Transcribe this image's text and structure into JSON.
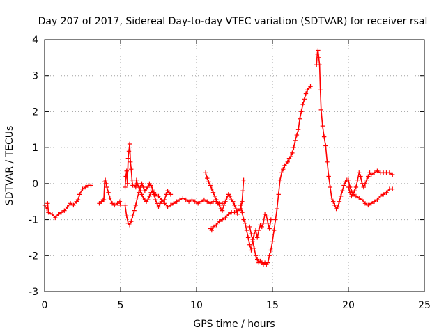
{
  "chart_data": {
    "type": "scatter",
    "title": "Day 207 of 2017, Sidereal Day-to-day VTEC variation (SDTVAR) for receiver rsal",
    "xlabel": "GPS time / hours",
    "ylabel": "SDTVAR / TECUs",
    "xlim": [
      0,
      25
    ],
    "ylim": [
      -3,
      4
    ],
    "xticks": [
      0,
      5,
      10,
      15,
      20,
      25
    ],
    "yticks": [
      -3,
      -2,
      -1,
      0,
      1,
      2,
      3,
      4
    ],
    "grid": true,
    "marker": "plus",
    "series": [
      {
        "name": "SDTVAR",
        "color": "#ff0000",
        "segments": [
          [
            [
              0.0,
              -0.6
            ],
            [
              0.15,
              -0.7
            ],
            [
              0.2,
              -0.55
            ],
            [
              0.25,
              -0.8
            ],
            [
              0.5,
              -0.85
            ],
            [
              0.7,
              -0.95
            ],
            [
              0.9,
              -0.85
            ],
            [
              1.1,
              -0.8
            ],
            [
              1.3,
              -0.75
            ],
            [
              1.5,
              -0.65
            ],
            [
              1.7,
              -0.55
            ],
            [
              1.9,
              -0.6
            ],
            [
              2.1,
              -0.5
            ],
            [
              2.2,
              -0.45
            ],
            [
              2.3,
              -0.3
            ],
            [
              2.5,
              -0.15
            ],
            [
              2.7,
              -0.1
            ],
            [
              2.9,
              -0.05
            ],
            [
              3.05,
              -0.05
            ]
          ],
          [
            [
              3.6,
              -0.55
            ],
            [
              3.75,
              -0.5
            ],
            [
              3.85,
              -0.45
            ],
            [
              3.9,
              -0.45
            ],
            [
              3.95,
              0.05
            ],
            [
              4.0,
              0.1
            ],
            [
              4.05,
              0.0
            ],
            [
              4.1,
              -0.1
            ],
            [
              4.2,
              -0.25
            ],
            [
              4.3,
              -0.4
            ],
            [
              4.45,
              -0.55
            ],
            [
              4.6,
              -0.6
            ],
            [
              4.8,
              -0.55
            ],
            [
              4.95,
              -0.5
            ],
            [
              5.0,
              -0.6
            ]
          ],
          [
            [
              5.3,
              -0.1
            ],
            [
              5.35,
              0.2
            ],
            [
              5.4,
              0.35
            ],
            [
              5.45,
              0.0
            ],
            [
              5.5,
              0.7
            ],
            [
              5.55,
              0.9
            ],
            [
              5.6,
              1.1
            ],
            [
              5.65,
              0.6
            ],
            [
              5.7,
              0.4
            ],
            [
              5.75,
              0.1
            ],
            [
              5.8,
              -0.05
            ],
            [
              5.9,
              -0.05
            ],
            [
              6.0,
              -0.1
            ],
            [
              6.05,
              0.1
            ],
            [
              6.1,
              0.0
            ],
            [
              6.2,
              -0.1
            ],
            [
              6.3,
              -0.2
            ],
            [
              6.4,
              -0.3
            ],
            [
              6.5,
              -0.4
            ],
            [
              6.6,
              -0.45
            ],
            [
              6.7,
              -0.5
            ],
            [
              6.8,
              -0.45
            ],
            [
              6.9,
              -0.35
            ],
            [
              7.0,
              -0.25
            ],
            [
              7.1,
              -0.2
            ],
            [
              7.2,
              -0.3
            ],
            [
              7.3,
              -0.45
            ],
            [
              7.4,
              -0.55
            ],
            [
              7.5,
              -0.65
            ],
            [
              7.6,
              -0.55
            ],
            [
              7.7,
              -0.5
            ],
            [
              7.9,
              -0.45
            ],
            [
              8.0,
              -0.3
            ],
            [
              8.1,
              -0.2
            ],
            [
              8.2,
              -0.25
            ],
            [
              8.3,
              -0.3
            ]
          ],
          [
            [
              5.3,
              -0.6
            ],
            [
              5.4,
              -0.9
            ],
            [
              5.5,
              -1.1
            ],
            [
              5.6,
              -1.15
            ],
            [
              5.7,
              -1.05
            ],
            [
              5.8,
              -0.9
            ],
            [
              5.9,
              -0.75
            ],
            [
              6.0,
              -0.6
            ],
            [
              6.1,
              -0.4
            ],
            [
              6.2,
              -0.25
            ],
            [
              6.3,
              -0.1
            ],
            [
              6.4,
              0.0
            ],
            [
              6.5,
              -0.1
            ],
            [
              6.6,
              -0.2
            ],
            [
              6.7,
              -0.15
            ],
            [
              6.8,
              -0.1
            ],
            [
              6.9,
              0.0
            ],
            [
              7.0,
              -0.05
            ],
            [
              7.1,
              -0.15
            ],
            [
              7.2,
              -0.25
            ],
            [
              7.3,
              -0.3
            ],
            [
              7.5,
              -0.35
            ],
            [
              7.7,
              -0.45
            ],
            [
              7.9,
              -0.55
            ],
            [
              8.1,
              -0.65
            ],
            [
              8.3,
              -0.6
            ],
            [
              8.5,
              -0.55
            ],
            [
              8.7,
              -0.5
            ],
            [
              8.9,
              -0.45
            ],
            [
              9.1,
              -0.4
            ],
            [
              9.3,
              -0.45
            ],
            [
              9.5,
              -0.5
            ],
            [
              9.7,
              -0.45
            ],
            [
              9.9,
              -0.5
            ],
            [
              10.1,
              -0.55
            ],
            [
              10.3,
              -0.5
            ],
            [
              10.5,
              -0.45
            ],
            [
              10.7,
              -0.5
            ],
            [
              10.9,
              -0.55
            ],
            [
              11.1,
              -0.5
            ],
            [
              11.3,
              -0.5
            ],
            [
              11.5,
              -0.55
            ],
            [
              11.7,
              -0.55
            ]
          ],
          [
            [
              10.6,
              0.3
            ],
            [
              10.7,
              0.15
            ],
            [
              10.8,
              0.05
            ],
            [
              10.9,
              -0.05
            ],
            [
              11.0,
              -0.15
            ],
            [
              11.1,
              -0.25
            ],
            [
              11.2,
              -0.35
            ],
            [
              11.3,
              -0.45
            ],
            [
              11.4,
              -0.55
            ],
            [
              11.5,
              -0.6
            ],
            [
              11.6,
              -0.7
            ],
            [
              11.7,
              -0.75
            ],
            [
              11.8,
              -0.6
            ],
            [
              11.9,
              -0.5
            ],
            [
              12.0,
              -0.4
            ],
            [
              12.1,
              -0.3
            ],
            [
              12.2,
              -0.35
            ],
            [
              12.3,
              -0.45
            ],
            [
              12.4,
              -0.5
            ],
            [
              12.5,
              -0.6
            ],
            [
              12.6,
              -0.7
            ],
            [
              12.7,
              -0.85
            ]
          ],
          [
            [
              10.9,
              -1.25
            ],
            [
              11.0,
              -1.3
            ],
            [
              11.1,
              -1.2
            ],
            [
              11.3,
              -1.15
            ],
            [
              11.5,
              -1.05
            ],
            [
              11.7,
              -1.0
            ],
            [
              11.9,
              -0.95
            ],
            [
              12.1,
              -0.85
            ],
            [
              12.3,
              -0.8
            ],
            [
              12.5,
              -0.8
            ],
            [
              12.7,
              -0.75
            ],
            [
              12.9,
              -0.7
            ],
            [
              13.0,
              -0.5
            ],
            [
              13.05,
              -0.2
            ],
            [
              13.1,
              0.1
            ]
          ],
          [
            [
              12.9,
              -0.6
            ],
            [
              13.0,
              -0.8
            ],
            [
              13.1,
              -1.0
            ],
            [
              13.2,
              -1.1
            ],
            [
              13.3,
              -1.3
            ],
            [
              13.4,
              -1.5
            ],
            [
              13.5,
              -1.7
            ],
            [
              13.6,
              -1.85
            ],
            [
              13.7,
              -1.55
            ],
            [
              13.8,
              -1.4
            ],
            [
              13.9,
              -1.3
            ],
            [
              14.0,
              -1.5
            ],
            [
              14.1,
              -1.3
            ],
            [
              14.2,
              -1.15
            ],
            [
              14.3,
              -1.2
            ],
            [
              14.4,
              -1.1
            ],
            [
              14.5,
              -0.85
            ],
            [
              14.6,
              -0.9
            ],
            [
              14.7,
              -1.1
            ],
            [
              14.8,
              -1.25
            ],
            [
              14.9,
              -1.0
            ]
          ],
          [
            [
              13.5,
              -1.2
            ],
            [
              13.6,
              -1.4
            ],
            [
              13.7,
              -1.6
            ],
            [
              13.8,
              -1.8
            ],
            [
              13.9,
              -2.0
            ],
            [
              14.0,
              -2.1
            ],
            [
              14.1,
              -2.2
            ],
            [
              14.2,
              -2.15
            ],
            [
              14.3,
              -2.2
            ],
            [
              14.4,
              -2.25
            ],
            [
              14.5,
              -2.2
            ],
            [
              14.6,
              -2.25
            ],
            [
              14.7,
              -2.2
            ],
            [
              14.8,
              -2.0
            ],
            [
              14.9,
              -1.85
            ],
            [
              15.0,
              -1.6
            ],
            [
              15.1,
              -1.3
            ],
            [
              15.2,
              -1.0
            ],
            [
              15.3,
              -0.7
            ],
            [
              15.4,
              -0.3
            ],
            [
              15.5,
              0.1
            ],
            [
              15.6,
              0.3
            ],
            [
              15.7,
              0.4
            ],
            [
              15.8,
              0.5
            ],
            [
              15.9,
              0.55
            ],
            [
              16.0,
              0.6
            ],
            [
              16.1,
              0.7
            ],
            [
              16.2,
              0.75
            ],
            [
              16.3,
              0.85
            ],
            [
              16.4,
              1.0
            ],
            [
              16.5,
              1.2
            ],
            [
              16.6,
              1.35
            ],
            [
              16.7,
              1.5
            ],
            [
              16.8,
              1.8
            ],
            [
              16.9,
              2.0
            ],
            [
              17.0,
              2.2
            ],
            [
              17.1,
              2.35
            ],
            [
              17.2,
              2.5
            ],
            [
              17.3,
              2.6
            ],
            [
              17.4,
              2.65
            ],
            [
              17.5,
              2.7
            ]
          ],
          [
            [
              17.9,
              3.3
            ],
            [
              17.95,
              3.6
            ],
            [
              18.0,
              3.7
            ],
            [
              18.05,
              3.5
            ],
            [
              18.1,
              3.3
            ],
            [
              18.15,
              2.6
            ],
            [
              18.2,
              2.05
            ],
            [
              18.3,
              1.6
            ],
            [
              18.4,
              1.3
            ],
            [
              18.5,
              1.05
            ],
            [
              18.6,
              0.6
            ],
            [
              18.7,
              0.2
            ],
            [
              18.8,
              -0.1
            ],
            [
              18.9,
              -0.4
            ],
            [
              19.0,
              -0.5
            ],
            [
              19.1,
              -0.6
            ],
            [
              19.2,
              -0.7
            ],
            [
              19.3,
              -0.65
            ],
            [
              19.4,
              -0.5
            ],
            [
              19.5,
              -0.35
            ],
            [
              19.6,
              -0.2
            ],
            [
              19.7,
              -0.05
            ],
            [
              19.8,
              0.05
            ],
            [
              19.9,
              0.1
            ],
            [
              20.0,
              0.1
            ],
            [
              20.1,
              -0.1
            ],
            [
              20.2,
              -0.2
            ],
            [
              20.3,
              -0.3
            ],
            [
              20.5,
              -0.35
            ],
            [
              20.7,
              -0.4
            ],
            [
              20.9,
              -0.45
            ],
            [
              21.1,
              -0.55
            ],
            [
              21.3,
              -0.6
            ],
            [
              21.5,
              -0.55
            ],
            [
              21.7,
              -0.5
            ],
            [
              21.9,
              -0.45
            ],
            [
              22.1,
              -0.35
            ],
            [
              22.3,
              -0.3
            ],
            [
              22.5,
              -0.25
            ],
            [
              22.7,
              -0.15
            ],
            [
              22.9,
              -0.15
            ]
          ],
          [
            [
              20.0,
              -0.1
            ],
            [
              20.1,
              -0.25
            ],
            [
              20.2,
              -0.35
            ],
            [
              20.3,
              -0.3
            ],
            [
              20.4,
              -0.2
            ],
            [
              20.5,
              -0.1
            ],
            [
              20.6,
              0.1
            ],
            [
              20.7,
              0.3
            ],
            [
              20.8,
              0.2
            ],
            [
              20.9,
              0.0
            ],
            [
              21.0,
              -0.1
            ],
            [
              21.1,
              0.0
            ],
            [
              21.2,
              0.1
            ],
            [
              21.3,
              0.2
            ],
            [
              21.4,
              0.3
            ],
            [
              21.5,
              0.25
            ],
            [
              21.7,
              0.3
            ],
            [
              21.9,
              0.35
            ],
            [
              22.1,
              0.3
            ],
            [
              22.3,
              0.3
            ],
            [
              22.5,
              0.3
            ],
            [
              22.7,
              0.3
            ],
            [
              22.9,
              0.25
            ]
          ]
        ]
      }
    ]
  }
}
